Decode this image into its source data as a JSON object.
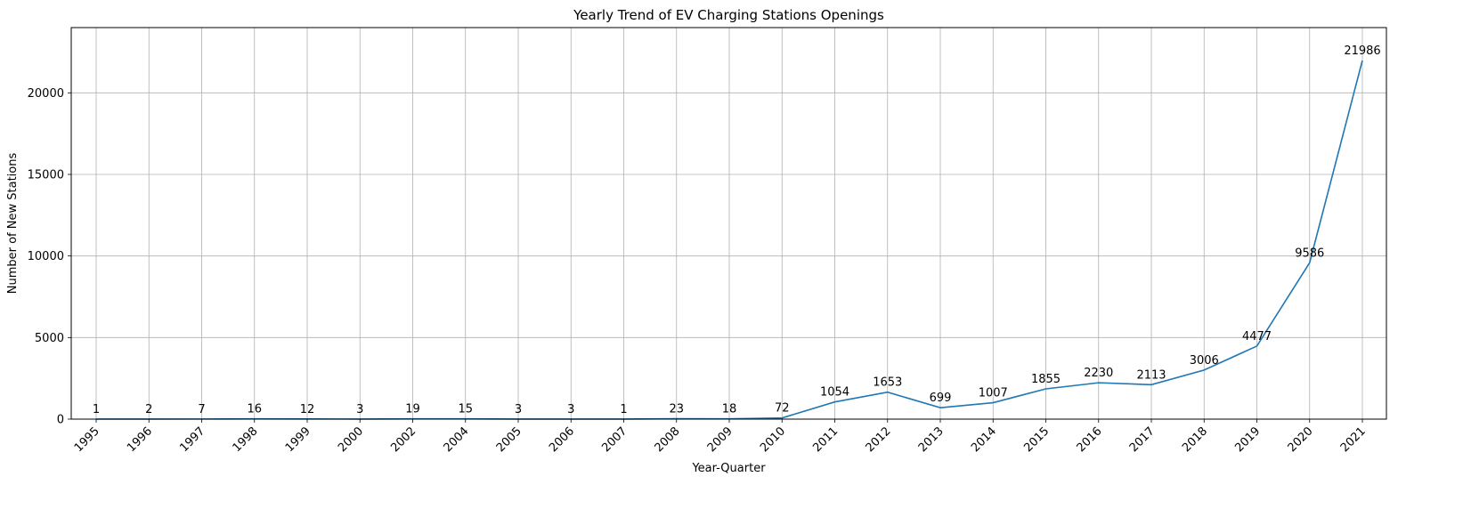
{
  "chart_data": {
    "type": "line",
    "title": "Yearly Trend of EV Charging Stations Openings",
    "xlabel": "Year-Quarter",
    "ylabel": "Number of New Stations",
    "categories": [
      "1995",
      "1996",
      "1997",
      "1998",
      "1999",
      "2000",
      "2002",
      "2004",
      "2005",
      "2006",
      "2007",
      "2008",
      "2009",
      "2010",
      "2011",
      "2012",
      "2013",
      "2014",
      "2015",
      "2016",
      "2017",
      "2018",
      "2019",
      "2020",
      "2021"
    ],
    "series": [
      {
        "values": [
          1,
          2,
          7,
          16,
          12,
          3,
          19,
          15,
          3,
          3,
          1,
          23,
          18,
          72,
          1054,
          1653,
          699,
          1007,
          1855,
          2230,
          2113,
          3006,
          4477,
          9586,
          21986
        ]
      }
    ],
    "ylim": [
      0,
      24000
    ],
    "yticks": [
      0,
      5000,
      10000,
      15000,
      20000
    ],
    "grid": true,
    "data_labels": true,
    "x_tick_rotation": 45,
    "line_color": "#1f77b4"
  }
}
